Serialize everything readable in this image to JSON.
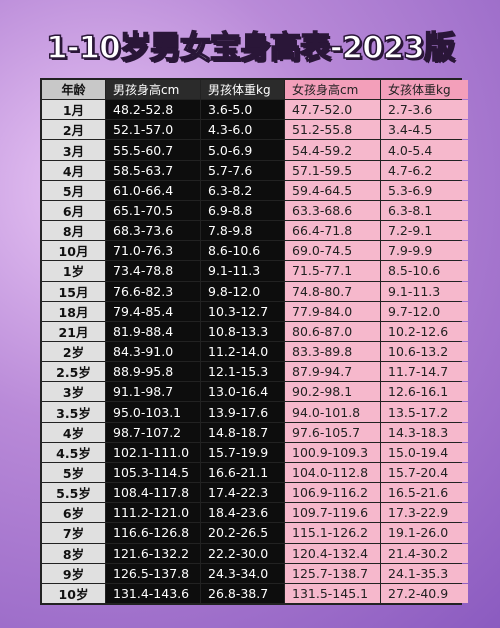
{
  "header": {
    "title": "1-10岁男女宝身高表-2023版"
  },
  "table": {
    "columns": [
      "年龄",
      "男孩身高cm",
      "男孩体重kg",
      "女孩身高cm",
      "女孩体重kg"
    ],
    "rows": [
      [
        "1月",
        "48.2-52.8",
        "3.6-5.0",
        "47.7-52.0",
        "2.7-3.6"
      ],
      [
        "2月",
        "52.1-57.0",
        "4.3-6.0",
        "51.2-55.8",
        "3.4-4.5"
      ],
      [
        "3月",
        "55.5-60.7",
        "5.0-6.9",
        "54.4-59.2",
        "4.0-5.4"
      ],
      [
        "4月",
        "58.5-63.7",
        "5.7-7.6",
        "57.1-59.5",
        "4.7-6.2"
      ],
      [
        "5月",
        "61.0-66.4",
        "6.3-8.2",
        "59.4-64.5",
        "5.3-6.9"
      ],
      [
        "6月",
        "65.1-70.5",
        "6.9-8.8",
        "63.3-68.6",
        "6.3-8.1"
      ],
      [
        "8月",
        "68.3-73.6",
        "7.8-9.8",
        "66.4-71.8",
        "7.2-9.1"
      ],
      [
        "10月",
        "71.0-76.3",
        "8.6-10.6",
        "69.0-74.5",
        "7.9-9.9"
      ],
      [
        "1岁",
        "73.4-78.8",
        "9.1-11.3",
        "71.5-77.1",
        "8.5-10.6"
      ],
      [
        "15月",
        "76.6-82.3",
        "9.8-12.0",
        "74.8-80.7",
        "9.1-11.3"
      ],
      [
        "18月",
        "79.4-85.4",
        "10.3-12.7",
        "77.9-84.0",
        "9.7-12.0"
      ],
      [
        "21月",
        "81.9-88.4",
        "10.8-13.3",
        "80.6-87.0",
        "10.2-12.6"
      ],
      [
        "2岁",
        "84.3-91.0",
        "11.2-14.0",
        "83.3-89.8",
        "10.6-13.2"
      ],
      [
        "2.5岁",
        "88.9-95.8",
        "12.1-15.3",
        "87.9-94.7",
        "11.7-14.7"
      ],
      [
        "3岁",
        "91.1-98.7",
        "13.0-16.4",
        "90.2-98.1",
        "12.6-16.1"
      ],
      [
        "3.5岁",
        "95.0-103.1",
        "13.9-17.6",
        "94.0-101.8",
        "13.5-17.2"
      ],
      [
        "4岁",
        "98.7-107.2",
        "14.8-18.7",
        "97.6-105.7",
        "14.3-18.3"
      ],
      [
        "4.5岁",
        "102.1-111.0",
        "15.7-19.9",
        "100.9-109.3",
        "15.0-19.4"
      ],
      [
        "5岁",
        "105.3-114.5",
        "16.6-21.1",
        "104.0-112.8",
        "15.7-20.4"
      ],
      [
        "5.5岁",
        "108.4-117.8",
        "17.4-22.3",
        "106.9-116.2",
        "16.5-21.6"
      ],
      [
        "6岁",
        "111.2-121.0",
        "18.4-23.6",
        "109.7-119.6",
        "17.3-22.9"
      ],
      [
        "7岁",
        "116.6-126.8",
        "20.2-26.5",
        "115.1-126.2",
        "19.1-26.0"
      ],
      [
        "8岁",
        "121.6-132.2",
        "22.2-30.0",
        "120.4-132.4",
        "21.4-30.2"
      ],
      [
        "9岁",
        "126.5-137.8",
        "24.3-34.0",
        "125.7-138.7",
        "24.1-35.3"
      ],
      [
        "10岁",
        "131.4-143.6",
        "26.8-38.7",
        "131.5-145.1",
        "27.2-40.9"
      ]
    ]
  }
}
